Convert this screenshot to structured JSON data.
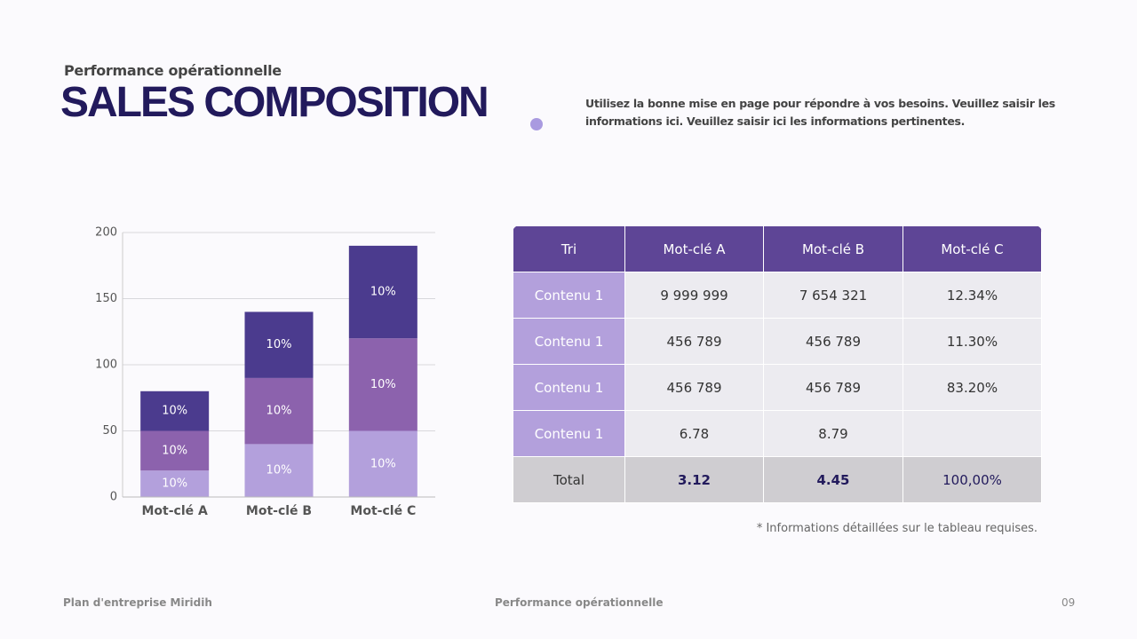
{
  "header": {
    "subtitle": "Performance opérationnelle",
    "title": "SALES COMPOSITION",
    "description": "Utilisez la bonne mise en page pour répondre à vos besoins. Veuillez saisir les informations ici. Veuillez saisir ici les informations pertinentes."
  },
  "chart_data": {
    "type": "bar",
    "stacked": true,
    "categories": [
      "Mot-clé A",
      "Mot-clé B",
      "Mot-clé C"
    ],
    "series": [
      {
        "color": "#b3a0dc",
        "values": [
          20,
          40,
          50
        ],
        "labels": [
          "10%",
          "10%",
          "10%"
        ]
      },
      {
        "color": "#8c62ad",
        "values": [
          30,
          50,
          70
        ],
        "labels": [
          "10%",
          "10%",
          "10%"
        ]
      },
      {
        "color": "#4b3b8e",
        "values": [
          30,
          50,
          70
        ],
        "labels": [
          "10%",
          "10%",
          "10%"
        ]
      }
    ],
    "ylim": [
      0,
      200
    ],
    "yticks": [
      0,
      50,
      100,
      150,
      200
    ],
    "grid": true
  },
  "table": {
    "columns": [
      "Tri",
      "Mot-clé A",
      "Mot-clé B",
      "Mot-clé C"
    ],
    "rows": [
      [
        "Contenu 1",
        "9 999 999",
        "7 654 321",
        "12.34%"
      ],
      [
        "Contenu 1",
        "456 789",
        "456 789",
        "11.30%"
      ],
      [
        "Contenu 1",
        "456 789",
        "456 789",
        "83.20%"
      ],
      [
        "Contenu 1",
        "6.78",
        "8.79",
        null
      ]
    ],
    "total": [
      "Total",
      "3.12",
      "4.45",
      "100,00%"
    ]
  },
  "footnote": "* Informations détaillées sur le tableau requises.",
  "footer": {
    "left": "Plan d'entreprise Miridih",
    "center": "Performance opérationnelle",
    "page": "09"
  }
}
